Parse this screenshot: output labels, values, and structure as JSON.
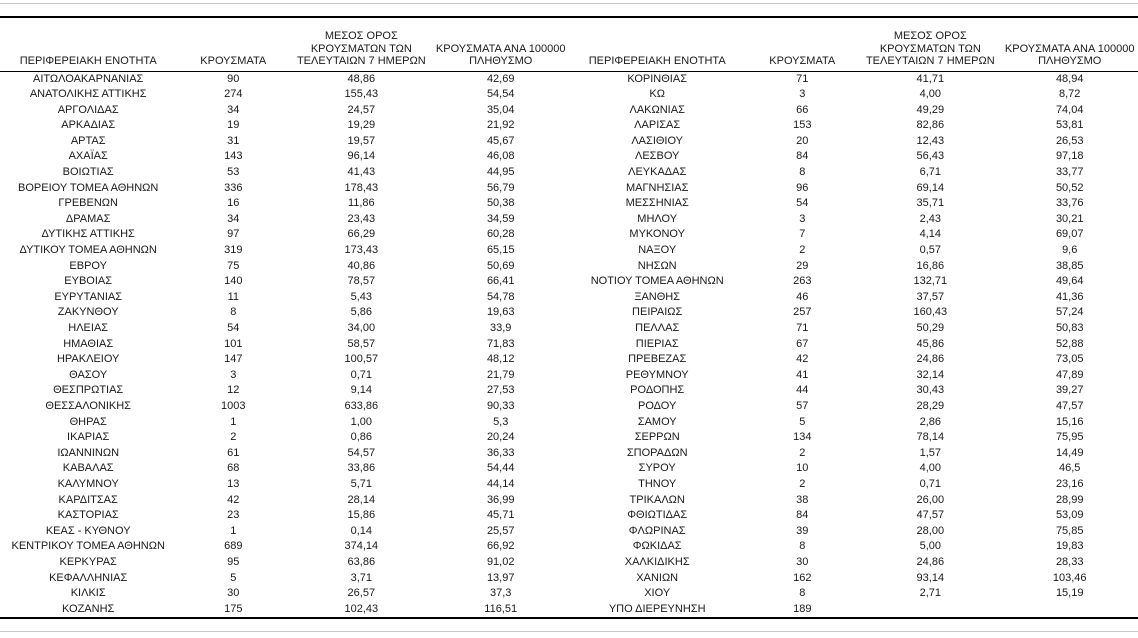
{
  "page": {
    "background_color": "#ffffff",
    "text_color": "#1a1a1a",
    "heavy_rule_color": "#000000",
    "light_rule_color": "#c9c9c9"
  },
  "tables": [
    {
      "headers": [
        "ΠΕΡΙΦΕΡΕΙΑΚΗ ΕΝΟΤΗΤΑ",
        "ΚΡΟΥΣΜΑΤΑ",
        "ΜΕΣΟΣ ΟΡΟΣ\nΚΡΟΥΣΜΑΤΩΝ ΤΩΝ\nΤΕΛΕΥΤΑΙΩΝ 7 ΗΜΕΡΩΝ",
        "ΚΡΟΥΣΜΑΤΑ ΑΝΑ 100000\nΠΛΗΘΥΣΜΟ"
      ],
      "rows": [
        [
          "ΑΙΤΩΛΟΑΚΑΡΝΑΝΙΑΣ",
          "90",
          "48,86",
          "42,69"
        ],
        [
          "ΑΝΑΤΟΛΙΚΗΣ ΑΤΤΙΚΗΣ",
          "274",
          "155,43",
          "54,54"
        ],
        [
          "ΑΡΓΟΛΙΔΑΣ",
          "34",
          "24,57",
          "35,04"
        ],
        [
          "ΑΡΚΑΔΙΑΣ",
          "19",
          "19,29",
          "21,92"
        ],
        [
          "ΑΡΤΑΣ",
          "31",
          "19,57",
          "45,67"
        ],
        [
          "ΑΧΑΪΑΣ",
          "143",
          "96,14",
          "46,08"
        ],
        [
          "ΒΟΙΩΤΙΑΣ",
          "53",
          "41,43",
          "44,95"
        ],
        [
          "ΒΟΡΕΙΟΥ ΤΟΜΕΑ ΑΘΗΝΩΝ",
          "336",
          "178,43",
          "56,79"
        ],
        [
          "ΓΡΕΒΕΝΩΝ",
          "16",
          "11,86",
          "50,38"
        ],
        [
          "ΔΡΑΜΑΣ",
          "34",
          "23,43",
          "34,59"
        ],
        [
          "ΔΥΤΙΚΗΣ ΑΤΤΙΚΗΣ",
          "97",
          "66,29",
          "60,28"
        ],
        [
          "ΔΥΤΙΚΟΥ ΤΟΜΕΑ ΑΘΗΝΩΝ",
          "319",
          "173,43",
          "65,15"
        ],
        [
          "ΕΒΡΟΥ",
          "75",
          "40,86",
          "50,69"
        ],
        [
          "ΕΥΒΟΙΑΣ",
          "140",
          "78,57",
          "66,41"
        ],
        [
          "ΕΥΡΥΤΑΝΙΑΣ",
          "11",
          "5,43",
          "54,78"
        ],
        [
          "ΖΑΚΥΝΘΟΥ",
          "8",
          "5,86",
          "19,63"
        ],
        [
          "ΗΛΕΙΑΣ",
          "54",
          "34,00",
          "33,9"
        ],
        [
          "ΗΜΑΘΙΑΣ",
          "101",
          "58,57",
          "71,83"
        ],
        [
          "ΗΡΑΚΛΕΙΟΥ",
          "147",
          "100,57",
          "48,12"
        ],
        [
          "ΘΑΣΟΥ",
          "3",
          "0,71",
          "21,79"
        ],
        [
          "ΘΕΣΠΡΩΤΙΑΣ",
          "12",
          "9,14",
          "27,53"
        ],
        [
          "ΘΕΣΣΑΛΟΝΙΚΗΣ",
          "1003",
          "633,86",
          "90,33"
        ],
        [
          "ΘΗΡΑΣ",
          "1",
          "1,00",
          "5,3"
        ],
        [
          "ΙΚΑΡΙΑΣ",
          "2",
          "0,86",
          "20,24"
        ],
        [
          "ΙΩΑΝΝΙΝΩΝ",
          "61",
          "54,57",
          "36,33"
        ],
        [
          "ΚΑΒΑΛΑΣ",
          "68",
          "33,86",
          "54,44"
        ],
        [
          "ΚΑΛΥΜΝΟΥ",
          "13",
          "5,71",
          "44,14"
        ],
        [
          "ΚΑΡΔΙΤΣΑΣ",
          "42",
          "28,14",
          "36,99"
        ],
        [
          "ΚΑΣΤΟΡΙΑΣ",
          "23",
          "15,86",
          "45,71"
        ],
        [
          "ΚΕΑΣ - ΚΥΘΝΟΥ",
          "1",
          "0,14",
          "25,57"
        ],
        [
          "ΚΕΝΤΡΙΚΟΥ ΤΟΜΕΑ ΑΘΗΝΩΝ",
          "689",
          "374,14",
          "66,92"
        ],
        [
          "ΚΕΡΚΥΡΑΣ",
          "95",
          "63,86",
          "91,02"
        ],
        [
          "ΚΕΦΑΛΛΗΝΙΑΣ",
          "5",
          "3,71",
          "13,97"
        ],
        [
          "ΚΙΛΚΙΣ",
          "30",
          "26,57",
          "37,3"
        ],
        [
          "ΚΟΖΑΝΗΣ",
          "175",
          "102,43",
          "116,51"
        ]
      ]
    },
    {
      "headers": [
        "ΠΕΡΙΦΕΡΕΙΑΚΗ ΕΝΟΤΗΤΑ",
        "ΚΡΟΥΣΜΑΤΑ",
        "ΜΕΣΟΣ ΟΡΟΣ\nΚΡΟΥΣΜΑΤΩΝ ΤΩΝ\nΤΕΛΕΥΤΑΙΩΝ 7 ΗΜΕΡΩΝ",
        "ΚΡΟΥΣΜΑΤΑ ΑΝΑ 100000\nΠΛΗΘΥΣΜΟ"
      ],
      "rows": [
        [
          "ΚΟΡΙΝΘΙΑΣ",
          "71",
          "41,71",
          "48,94"
        ],
        [
          "ΚΩ",
          "3",
          "4,00",
          "8,72"
        ],
        [
          "ΛΑΚΩΝΙΑΣ",
          "66",
          "49,29",
          "74,04"
        ],
        [
          "ΛΑΡΙΣΑΣ",
          "153",
          "82,86",
          "53,81"
        ],
        [
          "ΛΑΣΙΘΙΟΥ",
          "20",
          "12,43",
          "26,53"
        ],
        [
          "ΛΕΣΒΟΥ",
          "84",
          "56,43",
          "97,18"
        ],
        [
          "ΛΕΥΚΑΔΑΣ",
          "8",
          "6,71",
          "33,77"
        ],
        [
          "ΜΑΓΝΗΣΙΑΣ",
          "96",
          "69,14",
          "50,52"
        ],
        [
          "ΜΕΣΣΗΝΙΑΣ",
          "54",
          "35,71",
          "33,76"
        ],
        [
          "ΜΗΛΟΥ",
          "3",
          "2,43",
          "30,21"
        ],
        [
          "ΜΥΚΟΝΟΥ",
          "7",
          "4,14",
          "69,07"
        ],
        [
          "ΝΑΞΟΥ",
          "2",
          "0,57",
          "9,6"
        ],
        [
          "ΝΗΣΩΝ",
          "29",
          "16,86",
          "38,85"
        ],
        [
          "ΝΟΤΙΟΥ ΤΟΜΕΑ ΑΘΗΝΩΝ",
          "263",
          "132,71",
          "49,64"
        ],
        [
          "ΞΑΝΘΗΣ",
          "46",
          "37,57",
          "41,36"
        ],
        [
          "ΠΕΙΡΑΙΩΣ",
          "257",
          "160,43",
          "57,24"
        ],
        [
          "ΠΕΛΛΑΣ",
          "71",
          "50,29",
          "50,83"
        ],
        [
          "ΠΙΕΡΙΑΣ",
          "67",
          "45,86",
          "52,88"
        ],
        [
          "ΠΡΕΒΕΖΑΣ",
          "42",
          "24,86",
          "73,05"
        ],
        [
          "ΡΕΘΥΜΝΟΥ",
          "41",
          "32,14",
          "47,89"
        ],
        [
          "ΡΟΔΟΠΗΣ",
          "44",
          "30,43",
          "39,27"
        ],
        [
          "ΡΟΔΟΥ",
          "57",
          "28,29",
          "47,57"
        ],
        [
          "ΣΑΜΟΥ",
          "5",
          "2,86",
          "15,16"
        ],
        [
          "ΣΕΡΡΩΝ",
          "134",
          "78,14",
          "75,95"
        ],
        [
          "ΣΠΟΡΑΔΩΝ",
          "2",
          "1,57",
          "14,49"
        ],
        [
          "ΣΥΡΟΥ",
          "10",
          "4,00",
          "46,5"
        ],
        [
          "ΤΗΝΟΥ",
          "2",
          "0,71",
          "23,16"
        ],
        [
          "ΤΡΙΚΑΛΩΝ",
          "38",
          "26,00",
          "28,99"
        ],
        [
          "ΦΘΙΩΤΙΔΑΣ",
          "84",
          "47,57",
          "53,09"
        ],
        [
          "ΦΛΩΡΙΝΑΣ",
          "39",
          "28,00",
          "75,85"
        ],
        [
          "ΦΩΚΙΔΑΣ",
          "8",
          "5,00",
          "19,83"
        ],
        [
          "ΧΑΛΚΙΔΙΚΗΣ",
          "30",
          "24,86",
          "28,33"
        ],
        [
          "ΧΑΝΙΩΝ",
          "162",
          "93,14",
          "103,46"
        ],
        [
          "ΧΙΟΥ",
          "8",
          "2,71",
          "15,19"
        ],
        [
          "ΥΠΟ ΔΙΕΡΕΥΝΗΣΗ",
          "189",
          "",
          ""
        ]
      ]
    }
  ]
}
